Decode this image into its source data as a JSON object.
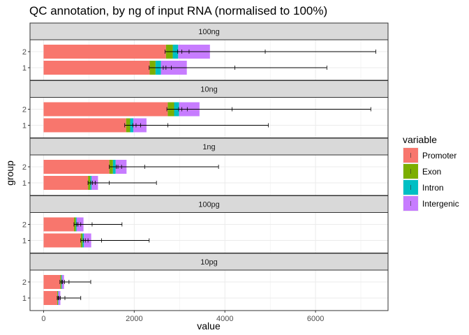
{
  "chart_data": {
    "type": "bar",
    "orientation": "horizontal",
    "stacked": true,
    "title": "QC annotation, by ng of input RNA (normalised to 100%)",
    "xlabel": "value",
    "ylabel": "group",
    "xlim": [
      -300,
      7600
    ],
    "xticks": [
      0,
      2000,
      4000,
      6000
    ],
    "tick_labels": [
      "0",
      "2000",
      "4000",
      "6000"
    ],
    "categories": [
      "1",
      "2"
    ],
    "grid": true,
    "legend": {
      "title": "variable",
      "position": "right",
      "entries": [
        "Promoter",
        "Exon",
        "Intron",
        "Intergenic"
      ]
    },
    "colors": {
      "Promoter": "#F8766D",
      "Exon": "#7CAE00",
      "Intron": "#00BFC4",
      "Intergenic": "#C77CFF"
    },
    "facets": [
      {
        "label": "100ng",
        "groups": [
          {
            "group": "2",
            "values": {
              "Promoter": 2700,
              "Exon": 150,
              "Intron": 120,
              "Intergenic": 700
            },
            "errors": [
              {
                "center": 2770,
                "low": 2680,
                "high": 7330
              },
              {
                "center": 3050,
                "low": 2960,
                "high": 4890
              },
              {
                "center": 3130,
                "low": 3050,
                "high": 3210
              }
            ]
          },
          {
            "group": "1",
            "values": {
              "Promoter": 2340,
              "Exon": 130,
              "Intron": 120,
              "Intergenic": 570
            },
            "errors": [
              {
                "center": 2400,
                "low": 2330,
                "high": 6250
              },
              {
                "center": 2720,
                "low": 2640,
                "high": 4220
              },
              {
                "center": 2750,
                "low": 2700,
                "high": 2820
              }
            ]
          }
        ]
      },
      {
        "label": "10ng",
        "groups": [
          {
            "group": "2",
            "values": {
              "Promoter": 2740,
              "Exon": 140,
              "Intron": 110,
              "Intergenic": 450
            },
            "errors": [
              {
                "center": 2800,
                "low": 2720,
                "high": 7220
              },
              {
                "center": 3050,
                "low": 2980,
                "high": 4160
              },
              {
                "center": 3110,
                "low": 3050,
                "high": 3170
              }
            ]
          },
          {
            "group": "1",
            "values": {
              "Promoter": 1820,
              "Exon": 90,
              "Intron": 70,
              "Intergenic": 290
            },
            "errors": [
              {
                "center": 1850,
                "low": 1790,
                "high": 4960
              },
              {
                "center": 2030,
                "low": 1970,
                "high": 2740
              },
              {
                "center": 2090,
                "low": 2040,
                "high": 2140
              }
            ]
          }
        ]
      },
      {
        "label": "1ng",
        "groups": [
          {
            "group": "2",
            "values": {
              "Promoter": 1450,
              "Exon": 80,
              "Intron": 60,
              "Intergenic": 240
            },
            "errors": [
              {
                "center": 1510,
                "low": 1450,
                "high": 3860
              },
              {
                "center": 1640,
                "low": 1600,
                "high": 2230
              },
              {
                "center": 1680,
                "low": 1640,
                "high": 1720
              }
            ]
          },
          {
            "group": "1",
            "values": {
              "Promoter": 980,
              "Exon": 50,
              "Intron": 30,
              "Intergenic": 140
            },
            "errors": [
              {
                "center": 1010,
                "low": 980,
                "high": 2490
              },
              {
                "center": 1080,
                "low": 1040,
                "high": 1450
              },
              {
                "center": 1110,
                "low": 1080,
                "high": 1140
              }
            ]
          }
        ]
      },
      {
        "label": "100pg",
        "groups": [
          {
            "group": "2",
            "values": {
              "Promoter": 670,
              "Exon": 40,
              "Intron": 20,
              "Intergenic": 150
            },
            "errors": [
              {
                "center": 700,
                "low": 670,
                "high": 1730
              },
              {
                "center": 760,
                "low": 730,
                "high": 1070
              },
              {
                "center": 790,
                "low": 760,
                "high": 820
              }
            ]
          },
          {
            "group": "1",
            "values": {
              "Promoter": 820,
              "Exon": 40,
              "Intron": 30,
              "Intergenic": 160
            },
            "errors": [
              {
                "center": 850,
                "low": 820,
                "high": 2330
              },
              {
                "center": 920,
                "low": 880,
                "high": 1280
              },
              {
                "center": 950,
                "low": 920,
                "high": 980
              }
            ]
          }
        ]
      },
      {
        "label": "10pg",
        "groups": [
          {
            "group": "2",
            "values": {
              "Promoter": 370,
              "Exon": 20,
              "Intron": 15,
              "Intergenic": 45
            },
            "errors": [
              {
                "center": 380,
                "low": 360,
                "high": 1040
              },
              {
                "center": 420,
                "low": 400,
                "high": 560
              },
              {
                "center": 440,
                "low": 420,
                "high": 460
              }
            ]
          },
          {
            "group": "1",
            "values": {
              "Promoter": 300,
              "Exon": 15,
              "Intron": 10,
              "Intergenic": 45
            },
            "errors": [
              {
                "center": 320,
                "low": 300,
                "high": 820
              },
              {
                "center": 340,
                "low": 320,
                "high": 470
              },
              {
                "center": 355,
                "low": 340,
                "high": 370
              }
            ]
          }
        ]
      }
    ]
  }
}
